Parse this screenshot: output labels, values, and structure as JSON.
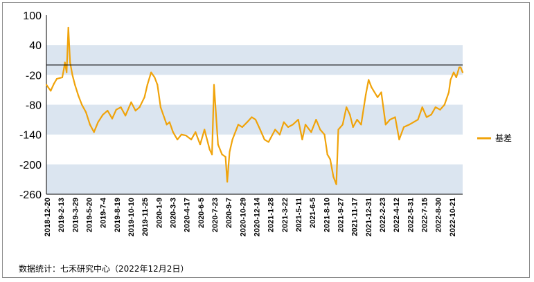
{
  "source_note": "数据统计：七禾研究中心（2022年12月2日）",
  "chart_data": {
    "type": "line",
    "title": "",
    "xlabel": "",
    "ylabel": "",
    "ylim": [
      -260,
      100
    ],
    "yticks": [
      100,
      40,
      -20,
      -80,
      -140,
      -200,
      -260
    ],
    "y_tick_labels": [
      "100",
      "40",
      "-20",
      "-80",
      "-140",
      "-200",
      "-260"
    ],
    "horizontal_bands": [
      [
        -20,
        40
      ],
      [
        -140,
        -80
      ],
      [
        -260,
        -200
      ]
    ],
    "band_color": "#dbe5f0",
    "reference_line": 0,
    "reference_line_color": "#000000",
    "x_range": [
      "2018-12-20",
      "2022-12-02"
    ],
    "x_tick_labels": [
      "2018-12-20",
      "2019-2-13",
      "2019-3-29",
      "2019-5-20",
      "2019-7-4",
      "2019-8-19",
      "2019-10-10",
      "2019-11-25",
      "2020-1-9",
      "2020-3-3",
      "2020-4-17",
      "2020-6-5",
      "2020-7-23",
      "2020-9-7",
      "2020-10-29",
      "2020-12-14",
      "2021-1-28",
      "2021-3-22",
      "2021-5-11",
      "2021-6-5",
      "2021-8-10",
      "2021-9-27",
      "2021-11-17",
      "2021-12-31",
      "2022-2-23",
      "2022-4-12",
      "2022-5-31",
      "2022-7-15",
      "2022-8-30",
      "2022-10-21"
    ],
    "legend_position": "right",
    "grid": false,
    "series": [
      {
        "name": "基差",
        "color": "#f0a30a",
        "x": [
          "2018-12-20",
          "2019-01-04",
          "2019-01-15",
          "2019-01-25",
          "2019-02-13",
          "2019-02-18",
          "2019-02-22",
          "2019-02-28",
          "2019-03-06",
          "2019-03-12",
          "2019-03-20",
          "2019-03-29",
          "2019-04-10",
          "2019-04-22",
          "2019-05-06",
          "2019-05-20",
          "2019-06-03",
          "2019-06-17",
          "2019-07-04",
          "2019-07-20",
          "2019-08-05",
          "2019-08-19",
          "2019-09-04",
          "2019-09-20",
          "2019-10-10",
          "2019-10-25",
          "2019-11-08",
          "2019-11-25",
          "2019-12-05",
          "2019-12-18",
          "2019-12-30",
          "2020-01-09",
          "2020-01-20",
          "2020-02-10",
          "2020-02-20",
          "2020-03-03",
          "2020-03-18",
          "2020-04-01",
          "2020-04-17",
          "2020-05-05",
          "2020-05-20",
          "2020-06-05",
          "2020-06-20",
          "2020-07-08",
          "2020-07-16",
          "2020-07-23",
          "2020-08-06",
          "2020-08-20",
          "2020-09-01",
          "2020-09-07",
          "2020-09-15",
          "2020-09-25",
          "2020-10-15",
          "2020-10-29",
          "2020-11-15",
          "2020-12-01",
          "2020-12-14",
          "2020-12-30",
          "2021-01-14",
          "2021-01-28",
          "2021-02-20",
          "2021-03-08",
          "2021-03-22",
          "2021-04-06",
          "2021-04-22",
          "2021-05-11",
          "2021-05-25",
          "2021-06-05",
          "2021-06-25",
          "2021-07-12",
          "2021-07-26",
          "2021-08-10",
          "2021-08-20",
          "2021-08-30",
          "2021-09-10",
          "2021-09-20",
          "2021-09-27",
          "2021-10-12",
          "2021-10-25",
          "2021-11-06",
          "2021-11-17",
          "2021-12-01",
          "2021-12-15",
          "2021-12-31",
          "2022-01-10",
          "2022-01-20",
          "2022-02-10",
          "2022-02-23",
          "2022-03-10",
          "2022-03-25",
          "2022-04-12",
          "2022-04-26",
          "2022-05-12",
          "2022-05-31",
          "2022-06-15",
          "2022-06-30",
          "2022-07-15",
          "2022-07-30",
          "2022-08-15",
          "2022-08-30",
          "2022-09-15",
          "2022-09-30",
          "2022-10-15",
          "2022-10-21",
          "2022-11-01",
          "2022-11-10",
          "2022-11-20",
          "2022-11-25",
          "2022-12-02"
        ],
        "y": [
          -40,
          -52,
          -38,
          -28,
          -25,
          -10,
          5,
          -15,
          75,
          5,
          -20,
          -40,
          -62,
          -80,
          -95,
          -120,
          -135,
          -115,
          -100,
          -92,
          -108,
          -90,
          -85,
          -102,
          -75,
          -92,
          -85,
          -65,
          -40,
          -15,
          -25,
          -40,
          -85,
          -120,
          -115,
          -135,
          -150,
          -140,
          -142,
          -150,
          -135,
          -160,
          -130,
          -170,
          -180,
          -40,
          -160,
          -180,
          -185,
          -235,
          -175,
          -150,
          -120,
          -125,
          -115,
          -105,
          -110,
          -130,
          -150,
          -155,
          -130,
          -140,
          -115,
          -125,
          -120,
          -110,
          -150,
          -120,
          -135,
          -110,
          -130,
          -140,
          -180,
          -190,
          -225,
          -240,
          -130,
          -120,
          -85,
          -100,
          -125,
          -110,
          -120,
          -60,
          -30,
          -45,
          -65,
          -55,
          -120,
          -110,
          -105,
          -150,
          -125,
          -120,
          -115,
          -110,
          -85,
          -105,
          -100,
          -85,
          -90,
          -80,
          -55,
          -30,
          -15,
          -25,
          -5,
          -5,
          -15
        ]
      }
    ]
  }
}
